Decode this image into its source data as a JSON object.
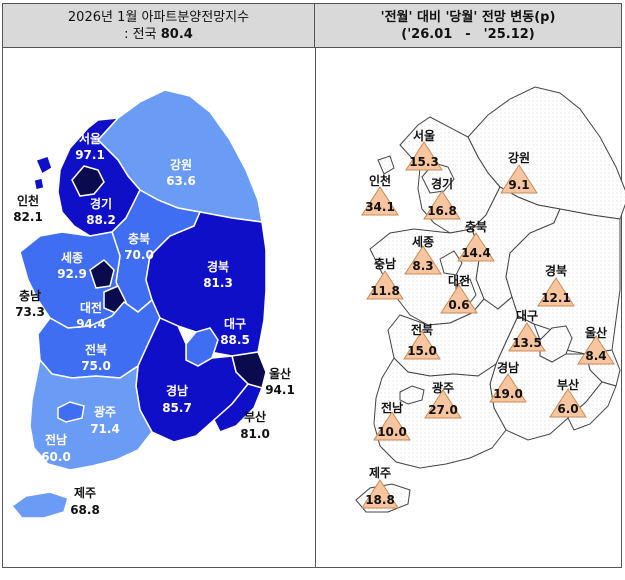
{
  "header": {
    "left_line1": "2026년 1월 아파트분양전망지수",
    "left_line2_prefix": ": 전국 ",
    "left_line2_value": "80.4",
    "right_line1": "'전월' 대비 '당월' 전망 변동(p)",
    "right_line2": "('26.01　-　'25.12)"
  },
  "colors": {
    "dark_navy": "#0a0a4e",
    "deep_blue": "#0f0fc8",
    "medium_blue": "#3f6ef2",
    "light_blue": "#6a9cf5",
    "triangle_fill": "#f7c6a0",
    "triangle_stroke": "#c98a55"
  },
  "left_map": {
    "regions": [
      {
        "name": "서울",
        "value": "97.1"
      },
      {
        "name": "인천",
        "value": "82.1"
      },
      {
        "name": "경기",
        "value": "88.2"
      },
      {
        "name": "강원",
        "value": "63.6"
      },
      {
        "name": "충북",
        "value": "70.0"
      },
      {
        "name": "세종",
        "value": "92.9"
      },
      {
        "name": "충남",
        "value": "73.3"
      },
      {
        "name": "대전",
        "value": "94.4"
      },
      {
        "name": "경북",
        "value": "81.3"
      },
      {
        "name": "대구",
        "value": "88.5"
      },
      {
        "name": "전북",
        "value": "75.0"
      },
      {
        "name": "울산",
        "value": "94.1"
      },
      {
        "name": "경남",
        "value": "85.7"
      },
      {
        "name": "부산",
        "value": "81.0"
      },
      {
        "name": "광주",
        "value": "71.4"
      },
      {
        "name": "전남",
        "value": "60.0"
      },
      {
        "name": "제주",
        "value": "68.8"
      }
    ]
  },
  "right_map": {
    "regions": [
      {
        "name": "서울",
        "value": "15.3"
      },
      {
        "name": "강원",
        "value": "9.1"
      },
      {
        "name": "인천",
        "value": "34.1"
      },
      {
        "name": "경기",
        "value": "16.8"
      },
      {
        "name": "충북",
        "value": "14.4"
      },
      {
        "name": "세종",
        "value": "8.3"
      },
      {
        "name": "충남",
        "value": "11.8"
      },
      {
        "name": "대전",
        "value": "0.6"
      },
      {
        "name": "경북",
        "value": "12.1"
      },
      {
        "name": "대구",
        "value": "13.5"
      },
      {
        "name": "울산",
        "value": "8.4"
      },
      {
        "name": "전북",
        "value": "15.0"
      },
      {
        "name": "광주",
        "value": "27.0"
      },
      {
        "name": "경남",
        "value": "19.0"
      },
      {
        "name": "부산",
        "value": "6.0"
      },
      {
        "name": "전남",
        "value": "10.0"
      },
      {
        "name": "제주",
        "value": "18.8"
      }
    ]
  }
}
